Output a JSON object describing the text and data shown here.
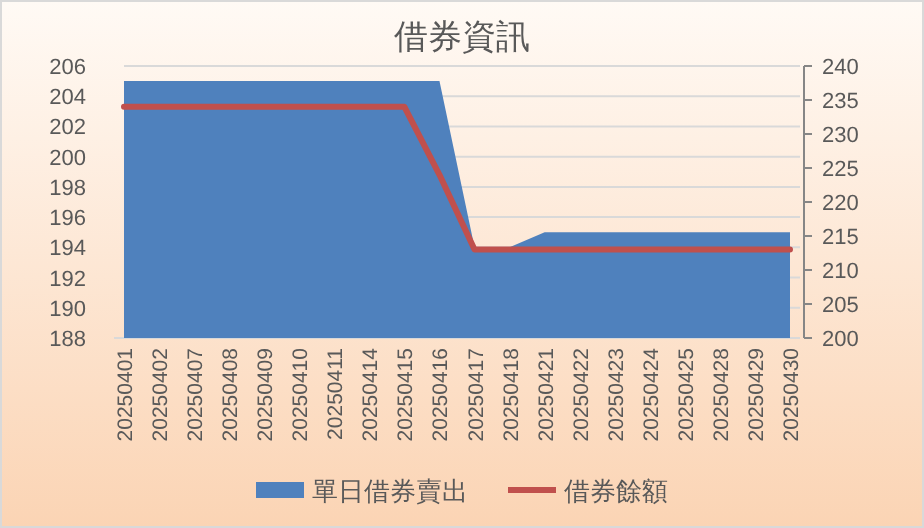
{
  "chart_data": {
    "type": "area",
    "title": "借券資訊",
    "categories": [
      "20250401",
      "20250402",
      "20250407",
      "20250408",
      "20250409",
      "20250410",
      "20250411",
      "20250414",
      "20250415",
      "20250416",
      "20250417",
      "20250418",
      "20250421",
      "20250422",
      "20250423",
      "20250424",
      "20250425",
      "20250428",
      "20250429",
      "20250430"
    ],
    "series": [
      {
        "name": "單日借券賣出",
        "color": "#4f81bd",
        "values": [
          205,
          205,
          205,
          205,
          205,
          205,
          205,
          205,
          205,
          205,
          194,
          194,
          195,
          195,
          195,
          195,
          195,
          195,
          195,
          195
        ]
      },
      {
        "name": "借券餘額",
        "type": "line",
        "axis": "y2",
        "color": "#c0504d",
        "values": [
          234,
          234,
          234,
          234,
          234,
          234,
          234,
          234,
          234,
          224,
          213,
          213,
          213,
          213,
          213,
          213,
          213,
          213,
          213,
          213
        ]
      }
    ],
    "ylim": [
      188,
      206
    ],
    "yticks": [
      188,
      190,
      192,
      194,
      196,
      198,
      200,
      202,
      204,
      206
    ],
    "y2lim": [
      200,
      240
    ],
    "y2ticks": [
      200,
      205,
      210,
      215,
      220,
      225,
      230,
      235,
      240
    ],
    "grid": "y",
    "legend": "bottom"
  }
}
